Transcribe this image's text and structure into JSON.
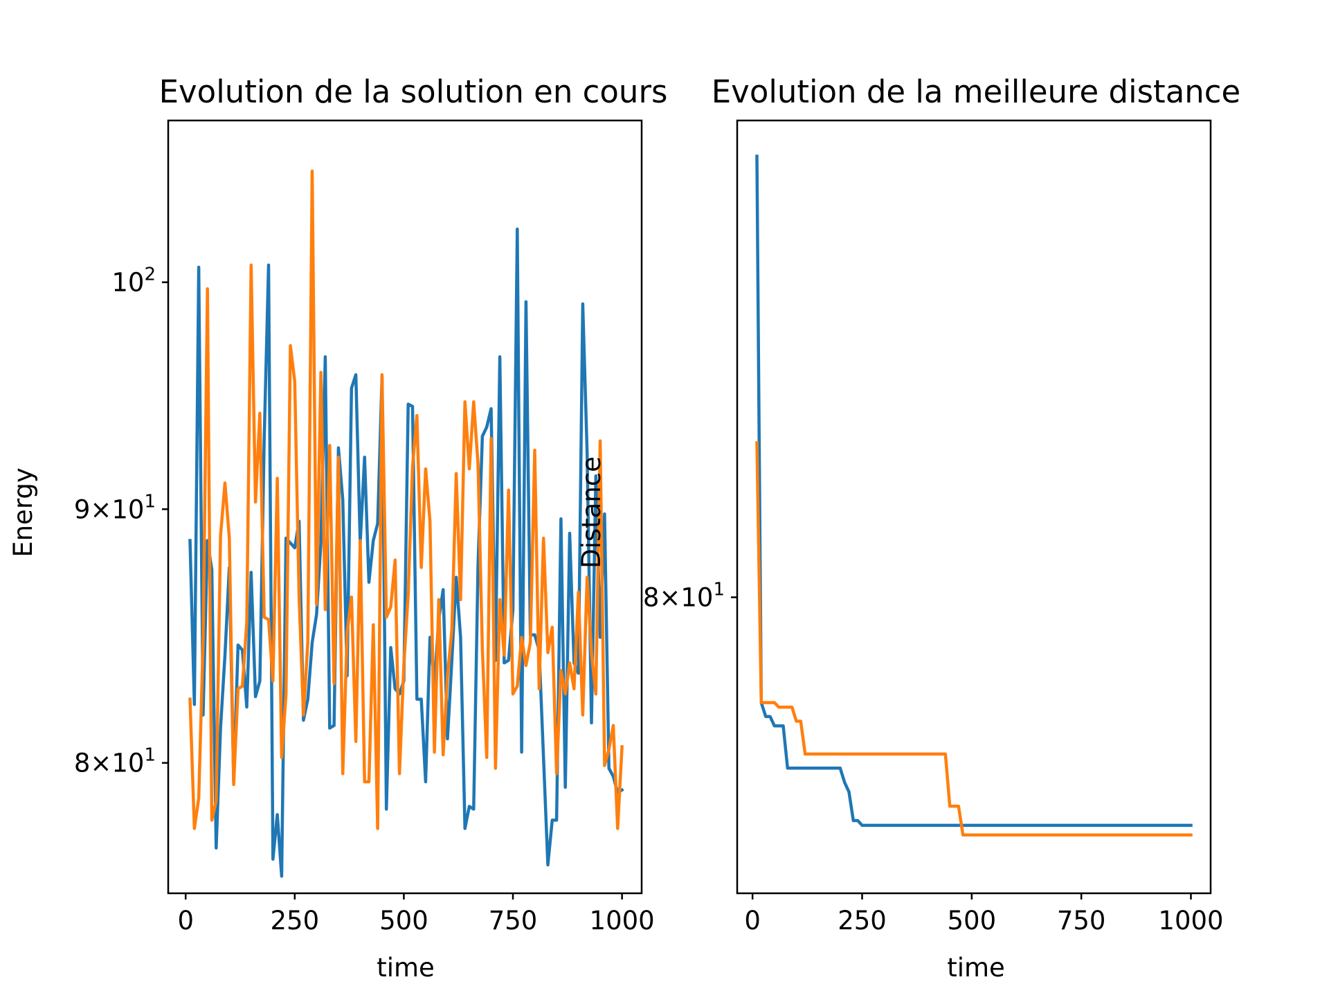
{
  "colors": {
    "series1": "#1f77b4",
    "series2": "#ff7f0e"
  },
  "chart_data": [
    {
      "type": "line",
      "title": "Evolution de la solution en cours",
      "xlabel": "time",
      "ylabel": "Energy",
      "xlim": [
        -40,
        1045
      ],
      "ylim": [
        75.3,
        107.8
      ],
      "yscale": "log",
      "xticks": [
        0,
        250,
        500,
        750,
        1000
      ],
      "xtick_labels": [
        "0",
        "250",
        "500",
        "750",
        "1000"
      ],
      "yticks": [
        {
          "value": 80,
          "base": "8",
          "exp": "1",
          "mult": true
        },
        {
          "value": 90,
          "base": "9",
          "exp": "1",
          "mult": true
        },
        {
          "value": 100,
          "base": "10",
          "exp": "2",
          "mult": false
        }
      ],
      "grid": false,
      "series": [
        {
          "color": "#1f77b4",
          "x": [
            10,
            20,
            30,
            40,
            50,
            60,
            70,
            80,
            90,
            100,
            110,
            120,
            130,
            140,
            150,
            160,
            170,
            180,
            190,
            200,
            210,
            220,
            230,
            240,
            250,
            260,
            270,
            280,
            290,
            300,
            310,
            320,
            330,
            340,
            350,
            360,
            370,
            380,
            390,
            400,
            410,
            420,
            430,
            440,
            450,
            460,
            470,
            480,
            490,
            500,
            510,
            520,
            530,
            540,
            550,
            560,
            570,
            580,
            590,
            600,
            610,
            620,
            630,
            640,
            650,
            660,
            670,
            680,
            690,
            700,
            710,
            720,
            730,
            740,
            750,
            760,
            770,
            780,
            790,
            800,
            810,
            820,
            830,
            840,
            850,
            860,
            870,
            880,
            890,
            900,
            910,
            920,
            930,
            940,
            950,
            960,
            970,
            980,
            990,
            1000
          ],
          "values": [
            88.7,
            82.2,
            100.7,
            81.8,
            88.7,
            87.5,
            76.9,
            81.3,
            84.1,
            87.6,
            79.3,
            84.5,
            84.3,
            82.1,
            87.4,
            82.5,
            83.1,
            93.0,
            100.8,
            76.5,
            78.1,
            75.9,
            88.8,
            88.6,
            88.4,
            89.5,
            81.6,
            82.4,
            84.6,
            85.7,
            88.6,
            96.6,
            81.3,
            81.4,
            92.6,
            90.4,
            83.3,
            95.2,
            95.8,
            88.6,
            92.2,
            87.0,
            88.7,
            89.4,
            95.7,
            78.3,
            84.4,
            82.8,
            82.6,
            83.1,
            94.5,
            94.4,
            82.4,
            82.4,
            79.3,
            84.8,
            83.0,
            85.5,
            86.7,
            80.9,
            83.9,
            87.2,
            84.8,
            77.6,
            78.4,
            78.3,
            87.7,
            93.1,
            93.5,
            94.3,
            83.9,
            96.6,
            83.8,
            83.9,
            85.9,
            102.5,
            80.4,
            99.1,
            84.9,
            84.9,
            84.3,
            80.2,
            76.3,
            77.9,
            77.9,
            89.6,
            79.1,
            89.0,
            83.8,
            83.4,
            99.0,
            92.4,
            81.5,
            91.4,
            84.8,
            89.8,
            79.8,
            79.5,
            78.9,
            79.0
          ]
        },
        {
          "color": "#ff7f0e",
          "x": [
            10,
            20,
            30,
            40,
            50,
            60,
            70,
            80,
            90,
            100,
            110,
            120,
            130,
            140,
            150,
            160,
            170,
            180,
            190,
            200,
            210,
            220,
            230,
            240,
            250,
            260,
            270,
            280,
            290,
            300,
            310,
            320,
            330,
            340,
            350,
            360,
            370,
            380,
            390,
            400,
            410,
            420,
            430,
            440,
            450,
            460,
            470,
            480,
            490,
            500,
            510,
            520,
            530,
            540,
            550,
            560,
            570,
            580,
            590,
            600,
            610,
            620,
            630,
            640,
            650,
            660,
            670,
            680,
            690,
            700,
            710,
            720,
            730,
            740,
            750,
            760,
            770,
            780,
            790,
            800,
            810,
            820,
            830,
            840,
            850,
            860,
            870,
            880,
            890,
            900,
            910,
            920,
            930,
            940,
            950,
            960,
            970,
            980,
            990,
            1000
          ],
          "values": [
            82.4,
            77.6,
            78.7,
            84.6,
            99.7,
            77.9,
            78.6,
            88.9,
            91.1,
            88.8,
            79.2,
            82.8,
            82.9,
            85.4,
            100.8,
            90.3,
            94.1,
            85.6,
            85.5,
            83.1,
            91.3,
            80.2,
            82.6,
            97.1,
            95.5,
            86.4,
            81.8,
            84.6,
            105.3,
            86.1,
            95.9,
            85.9,
            92.7,
            83.0,
            92.2,
            79.6,
            85.0,
            86.4,
            80.8,
            88.7,
            79.3,
            79.3,
            85.3,
            77.6,
            95.8,
            85.6,
            86.0,
            87.9,
            79.6,
            83.7,
            86.5,
            91.8,
            94.0,
            87.6,
            91.7,
            89.5,
            80.4,
            86.3,
            80.3,
            83.3,
            85.1,
            91.5,
            86.3,
            94.6,
            91.7,
            94.6,
            91.9,
            84.3,
            80.2,
            93.0,
            79.8,
            86.3,
            84.1,
            90.8,
            82.6,
            82.9,
            84.8,
            83.7,
            84.6,
            92.5,
            82.8,
            88.8,
            84.2,
            85.2,
            79.6,
            83.5,
            82.6,
            83.8,
            82.8,
            86.6,
            81.8,
            87.2,
            84.2,
            82.6,
            92.9,
            79.9,
            80.5,
            81.4,
            77.6,
            80.6
          ]
        }
      ]
    },
    {
      "type": "line",
      "title": "Evolution de la meilleure distance",
      "xlabel": "time",
      "ylabel": "Distance",
      "xlim": [
        -35,
        1045
      ],
      "ylim": [
        73.7,
        91.3
      ],
      "yscale": "log",
      "xticks": [
        0,
        250,
        500,
        750,
        1000
      ],
      "xtick_labels": [
        "0",
        "250",
        "500",
        "750",
        "1000"
      ],
      "yticks": [
        {
          "value": 80,
          "base": "8",
          "exp": "1",
          "mult": true
        }
      ],
      "grid": false,
      "series": [
        {
          "color": "#1f77b4",
          "x": [
            10,
            20,
            30,
            40,
            50,
            60,
            70,
            80,
            90,
            100,
            110,
            120,
            130,
            140,
            150,
            160,
            170,
            180,
            190,
            200,
            210,
            220,
            230,
            240,
            250,
            260,
            500,
            750,
            1000
          ],
          "values": [
            90.4,
            77.7,
            77.4,
            77.4,
            77.2,
            77.2,
            77.2,
            76.3,
            76.3,
            76.3,
            76.3,
            76.3,
            76.3,
            76.3,
            76.3,
            76.3,
            76.3,
            76.3,
            76.3,
            76.3,
            76.0,
            75.8,
            75.2,
            75.2,
            75.1,
            75.1,
            75.1,
            75.1,
            75.1
          ]
        },
        {
          "color": "#ff7f0e",
          "x": [
            10,
            20,
            30,
            40,
            50,
            60,
            70,
            80,
            90,
            100,
            110,
            120,
            130,
            140,
            440,
            450,
            460,
            470,
            480,
            490,
            500,
            750,
            1000
          ],
          "values": [
            83.5,
            77.7,
            77.7,
            77.7,
            77.7,
            77.6,
            77.6,
            77.6,
            77.6,
            77.3,
            77.3,
            76.6,
            76.6,
            76.6,
            76.6,
            75.5,
            75.5,
            75.5,
            74.9,
            74.9,
            74.9,
            74.9,
            74.9
          ]
        }
      ]
    }
  ]
}
